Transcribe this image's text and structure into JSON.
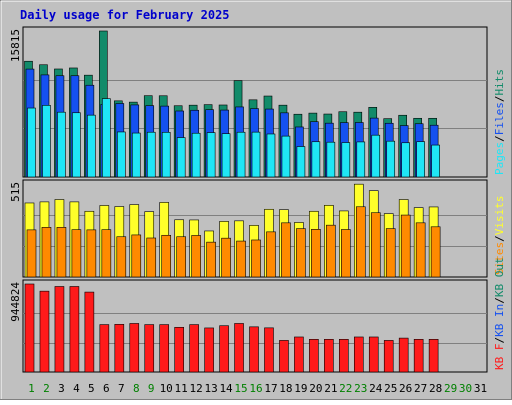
{
  "colors": {
    "frame_bg": "#c0c0c0",
    "panel_bg": "#c0c0c0",
    "title": "#0000cc",
    "hits": "#128b6a",
    "files": "#1551f0",
    "pages": "#1fe6f6",
    "visits": "#ffff2a",
    "sites": "#ff8a00",
    "kbf": "#ff1a1a",
    "weekday_label": "#000000",
    "weekend_label": "#008000"
  },
  "chart_data": {
    "type": "bar",
    "title": "Daily usage for February 2025",
    "x_labels": [
      "1",
      "2",
      "3",
      "4",
      "5",
      "6",
      "7",
      "8",
      "9",
      "10",
      "11",
      "12",
      "13",
      "14",
      "15",
      "16",
      "17",
      "18",
      "19",
      "20",
      "21",
      "22",
      "23",
      "24",
      "25",
      "26",
      "27",
      "28",
      "29",
      "30",
      "31"
    ],
    "weekend_days": [
      "1",
      "2",
      "8",
      "9",
      "15",
      "16",
      "22",
      "23",
      "29",
      "30"
    ],
    "panels": [
      {
        "name": "hits-files-pages",
        "axis_max_label": "15815",
        "ymax": 15815,
        "legend": [
          {
            "text": "Hits",
            "color_key": "hits"
          },
          {
            "text": "Files",
            "color_key": "files"
          },
          {
            "text": "Pages",
            "color_key": "pages"
          }
        ],
        "separator": "/",
        "series": [
          {
            "name": "Hits",
            "color_key": "hits",
            "values": [
              12540,
              12160,
              11700,
              11810,
              11030,
              15815,
              8250,
              8110,
              8810,
              8800,
              7720,
              7780,
              7840,
              7800,
              10440,
              8360,
              8770,
              7780,
              6800,
              6920,
              6820,
              7070,
              7020,
              7550,
              6320,
              6690,
              6360,
              6360,
              null,
              null,
              null
            ]
          },
          {
            "name": "Files",
            "color_key": "files",
            "values": [
              11690,
              11060,
              10970,
              10970,
              9940,
              7860,
              7960,
              7810,
              7730,
              7680,
              7150,
              7230,
              7290,
              7250,
              7590,
              7410,
              7360,
              6950,
              5420,
              5990,
              5830,
              5890,
              5900,
              6380,
              5820,
              5570,
              5770,
              5610,
              null,
              null,
              null
            ]
          },
          {
            "name": "Pages",
            "color_key": "pages",
            "values": [
              7470,
              7760,
              7020,
              6960,
              6700,
              8490,
              4880,
              4760,
              4850,
              4840,
              4270,
              4740,
              4810,
              4690,
              4850,
              4860,
              4660,
              4430,
              3300,
              3820,
              3770,
              3730,
              3800,
              4530,
              3880,
              3710,
              3830,
              3460,
              null,
              null,
              null
            ]
          }
        ]
      },
      {
        "name": "visits-sites",
        "axis_max_label": "515",
        "ymax": 515,
        "legend": [
          {
            "text": "Visits",
            "color_key": "visits"
          },
          {
            "text": "Sites",
            "color_key": "sites"
          }
        ],
        "separator": "/",
        "series": [
          {
            "name": "Visits",
            "color_key": "visits",
            "values": [
              410,
              416,
              429,
              416,
              364,
              396,
              390,
              401,
              362,
              413,
              317,
              316,
              255,
              308,
              311,
              286,
              375,
              373,
              302,
              364,
              397,
              366,
              514,
              478,
              351,
              429,
              384,
              388,
              null,
              null,
              null
            ]
          },
          {
            "name": "Sites",
            "color_key": "sites",
            "values": [
              261,
              275,
              275,
              262,
              261,
              262,
              223,
              233,
              216,
              231,
              223,
              230,
              193,
              215,
              199,
              205,
              250,
              300,
              268,
              264,
              287,
              263,
              389,
              356,
              268,
              343,
              300,
              278,
              null,
              null,
              null
            ]
          }
        ]
      },
      {
        "name": "kbf-kbin-kbout",
        "axis_max_label": "944824",
        "ymax": 944824,
        "legend": [
          {
            "text": "KB Out",
            "color_key": "hits"
          },
          {
            "text": "KB In",
            "color_key": "files"
          },
          {
            "text": "KB F",
            "color_key": "kbf"
          }
        ],
        "separator": "/",
        "series": [
          {
            "name": "KB F",
            "color_key": "kbf",
            "values": [
              944824,
              868000,
              918000,
              918000,
              858000,
              509000,
              512000,
              521000,
              509000,
              509000,
              480000,
              509000,
              473000,
              497000,
              521000,
              485000,
              474000,
              339000,
              376000,
              351000,
              351000,
              351000,
              376000,
              376000,
              339000,
              364000,
              351000,
              351000,
              null,
              null,
              null
            ]
          }
        ]
      }
    ],
    "grid": true,
    "legend_placement": "right, vertical"
  }
}
